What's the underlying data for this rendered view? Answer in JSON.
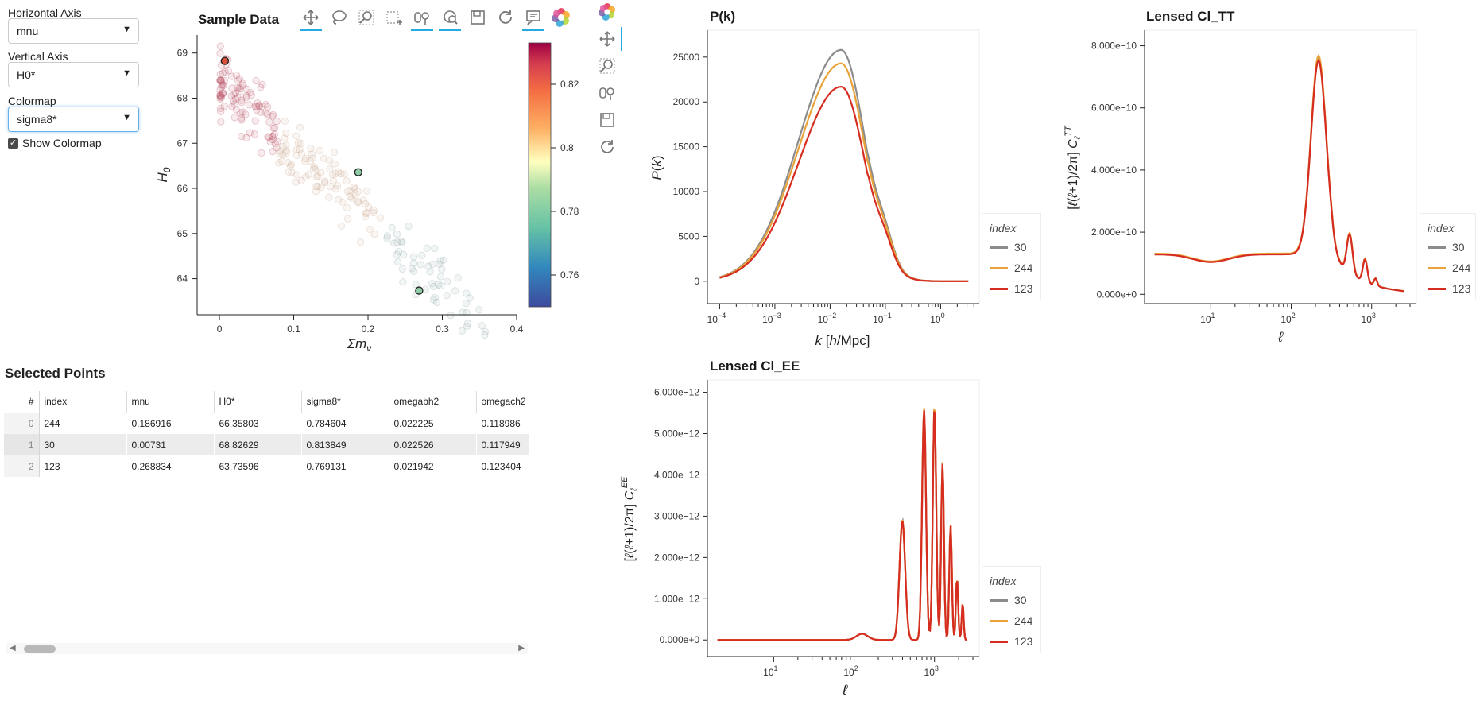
{
  "controls": {
    "horizontal_axis": {
      "label": "Horizontal Axis",
      "value": "mnu"
    },
    "vertical_axis": {
      "label": "Vertical Axis",
      "value": "H0*"
    },
    "colormap": {
      "label": "Colormap",
      "value": "sigma8*"
    },
    "show_colormap": {
      "label": "Show Colormap",
      "checked": true
    }
  },
  "toolbar_icons": [
    "pan-icon",
    "lasso-select-icon",
    "box-zoom-icon",
    "box-select-icon",
    "tap-icon",
    "wheel-zoom-icon",
    "save-icon",
    "reset-icon",
    "hover-icon",
    "bokeh-logo-icon"
  ],
  "series_colors": {
    "30": "#8c8c8c",
    "244": "#e8a33a",
    "123": "#d62d20"
  },
  "scatter": {
    "chart_data": {
      "type": "scatter",
      "title": "Sample Data",
      "xlabel": "Σm_ν",
      "ylabel": "H_0",
      "xlim": [
        -0.03,
        0.4
      ],
      "ylim": [
        63.2,
        69.4
      ],
      "xticks": [
        "0",
        "0.1",
        "0.2",
        "0.3",
        "0.4"
      ],
      "yticks": [
        "64",
        "65",
        "66",
        "67",
        "68",
        "69"
      ],
      "colorbar": {
        "label": "sigma8*",
        "range": [
          0.75,
          0.833
        ],
        "ticks": [
          "0.76",
          "0.78",
          "0.8",
          "0.82"
        ]
      },
      "selected_points": [
        {
          "x": 0.00731,
          "y": 68.82629,
          "c": 0.813849
        },
        {
          "x": 0.186916,
          "y": 66.35803,
          "c": 0.784604
        },
        {
          "x": 0.268834,
          "y": 63.73596,
          "c": 0.769131
        }
      ]
    }
  },
  "table": {
    "title": "Selected Points",
    "columns": [
      "#",
      "index",
      "mnu",
      "H0*",
      "sigma8*",
      "omegabh2",
      "omegach2"
    ],
    "rows": [
      [
        "0",
        "244",
        "0.186916",
        "66.35803",
        "0.784604",
        "0.022225",
        "0.118986"
      ],
      [
        "1",
        "30",
        "0.00731",
        "68.82629",
        "0.813849",
        "0.022526",
        "0.117949"
      ],
      [
        "2",
        "123",
        "0.268834",
        "63.73596",
        "0.769131",
        "0.021942",
        "0.123404"
      ]
    ]
  },
  "pk": {
    "chart_data": {
      "type": "line",
      "title": "P(k)",
      "xlabel": "k [h/Mpc]",
      "ylabel": "P(k)",
      "xscale": "log",
      "xlim": [
        6e-05,
        5
      ],
      "ylim": [
        -2500,
        28000
      ],
      "xticks": [
        "10",
        "10",
        "10",
        "10",
        "10",
        "10"
      ],
      "xtick_exps": [
        "−4",
        "−3",
        "−2",
        "−1",
        "0",
        ""
      ],
      "yticks": [
        "0",
        "5000",
        "10000",
        "15000",
        "20000",
        "25000"
      ],
      "legend_title": "index",
      "legend": [
        "30",
        "244",
        "123"
      ],
      "series": [
        {
          "name": "30",
          "peak": 25800
        },
        {
          "name": "244",
          "peak": 24300
        },
        {
          "name": "123",
          "peak": 21700
        }
      ]
    }
  },
  "tt": {
    "chart_data": {
      "type": "line",
      "title": "Lensed Cl_TT",
      "xlabel": "ℓ",
      "ylabel": "[ℓ(ℓ+1)/2π] C_ℓ^TT",
      "xscale": "log",
      "xlim": [
        1.5,
        3600
      ],
      "ylim": [
        -3e-11,
        8.5e-10
      ],
      "xticks": [
        "10",
        "10",
        "10"
      ],
      "xtick_exps": [
        "1",
        "2",
        "3"
      ],
      "yticks": [
        "0.000e+0",
        "2.000e−10",
        "4.000e−10",
        "6.000e−10",
        "8.000e−10"
      ],
      "legend_title": "index",
      "legend": [
        "30",
        "244",
        "123"
      ]
    }
  },
  "ee": {
    "chart_data": {
      "type": "line",
      "title": "Lensed Cl_EE",
      "xlabel": "ℓ",
      "ylabel": "[ℓ(ℓ+1)/2π] C_ℓ^EE",
      "xscale": "log",
      "xlim": [
        1.5,
        3600
      ],
      "ylim": [
        -4e-13,
        6.3e-12
      ],
      "xticks": [
        "10",
        "10",
        "10"
      ],
      "xtick_exps": [
        "1",
        "2",
        "3"
      ],
      "yticks": [
        "0.000e+0",
        "1.000e−12",
        "2.000e−12",
        "3.000e−12",
        "4.000e−12",
        "5.000e−12",
        "6.000e−12"
      ],
      "legend_title": "index",
      "legend": [
        "30",
        "244",
        "123"
      ]
    }
  }
}
